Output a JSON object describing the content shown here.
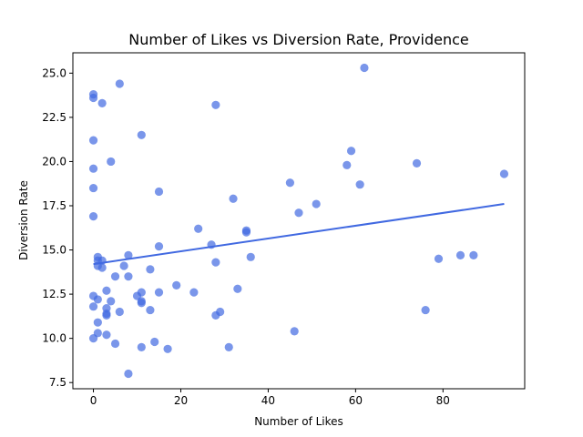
{
  "chart_data": {
    "type": "scatter",
    "title": "Number of Likes vs Diversion Rate, Providence",
    "xlabel": "Number of Likes",
    "ylabel": "Diversion Rate",
    "xlim": [
      -4.7,
      98.7
    ],
    "ylim": [
      7.15,
      26.15
    ],
    "grid": false,
    "xticks": [
      0,
      20,
      40,
      60,
      80
    ],
    "xtick_labels": [
      "0",
      "20",
      "40",
      "60",
      "80"
    ],
    "yticks": [
      7.5,
      10.0,
      12.5,
      15.0,
      17.5,
      20.0,
      22.5,
      25.0
    ],
    "ytick_labels": [
      "7.5",
      "10.0",
      "12.5",
      "15.0",
      "17.5",
      "20.0",
      "22.5",
      "25.0"
    ],
    "point_color": "#4169e1",
    "trendline": {
      "x": [
        0,
        94
      ],
      "y": [
        14.2,
        17.6
      ],
      "color": "#4169e1"
    },
    "points": [
      {
        "x": 0,
        "y": 23.8
      },
      {
        "x": 0,
        "y": 23.6
      },
      {
        "x": 2,
        "y": 23.3
      },
      {
        "x": 6,
        "y": 24.4
      },
      {
        "x": 0,
        "y": 21.2
      },
      {
        "x": 0,
        "y": 19.6
      },
      {
        "x": 0,
        "y": 18.5
      },
      {
        "x": 0,
        "y": 16.9
      },
      {
        "x": 4,
        "y": 20.0
      },
      {
        "x": 11,
        "y": 21.5
      },
      {
        "x": 28,
        "y": 23.2
      },
      {
        "x": 62,
        "y": 25.3
      },
      {
        "x": 1,
        "y": 14.6
      },
      {
        "x": 1,
        "y": 14.4
      },
      {
        "x": 1,
        "y": 14.1
      },
      {
        "x": 2,
        "y": 14.4
      },
      {
        "x": 2,
        "y": 14.0
      },
      {
        "x": 7,
        "y": 14.1
      },
      {
        "x": 8,
        "y": 14.7
      },
      {
        "x": 8,
        "y": 13.5
      },
      {
        "x": 5,
        "y": 13.5
      },
      {
        "x": 3,
        "y": 12.7
      },
      {
        "x": 0,
        "y": 12.4
      },
      {
        "x": 1,
        "y": 12.2
      },
      {
        "x": 4,
        "y": 12.1
      },
      {
        "x": 0,
        "y": 11.8
      },
      {
        "x": 3,
        "y": 11.7
      },
      {
        "x": 3,
        "y": 11.4
      },
      {
        "x": 3,
        "y": 11.3
      },
      {
        "x": 6,
        "y": 11.5
      },
      {
        "x": 1,
        "y": 10.9
      },
      {
        "x": 1,
        "y": 10.3
      },
      {
        "x": 3,
        "y": 10.2
      },
      {
        "x": 0,
        "y": 10.0
      },
      {
        "x": 5,
        "y": 9.7
      },
      {
        "x": 8,
        "y": 8.0
      },
      {
        "x": 10,
        "y": 12.4
      },
      {
        "x": 11,
        "y": 12.6
      },
      {
        "x": 11,
        "y": 12.1
      },
      {
        "x": 11,
        "y": 12.0
      },
      {
        "x": 13,
        "y": 13.9
      },
      {
        "x": 13,
        "y": 11.6
      },
      {
        "x": 15,
        "y": 15.2
      },
      {
        "x": 15,
        "y": 12.6
      },
      {
        "x": 15,
        "y": 18.3
      },
      {
        "x": 11,
        "y": 9.5
      },
      {
        "x": 14,
        "y": 9.8
      },
      {
        "x": 17,
        "y": 9.4
      },
      {
        "x": 19,
        "y": 13.0
      },
      {
        "x": 23,
        "y": 12.6
      },
      {
        "x": 24,
        "y": 16.2
      },
      {
        "x": 27,
        "y": 15.3
      },
      {
        "x": 28,
        "y": 14.3
      },
      {
        "x": 28,
        "y": 11.3
      },
      {
        "x": 29,
        "y": 11.5
      },
      {
        "x": 31,
        "y": 9.5
      },
      {
        "x": 32,
        "y": 17.9
      },
      {
        "x": 33,
        "y": 12.8
      },
      {
        "x": 35,
        "y": 16.1
      },
      {
        "x": 35,
        "y": 16.0
      },
      {
        "x": 36,
        "y": 14.6
      },
      {
        "x": 45,
        "y": 18.8
      },
      {
        "x": 46,
        "y": 10.4
      },
      {
        "x": 47,
        "y": 17.1
      },
      {
        "x": 51,
        "y": 17.6
      },
      {
        "x": 58,
        "y": 19.8
      },
      {
        "x": 59,
        "y": 20.6
      },
      {
        "x": 61,
        "y": 18.7
      },
      {
        "x": 74,
        "y": 19.9
      },
      {
        "x": 76,
        "y": 11.6
      },
      {
        "x": 79,
        "y": 14.5
      },
      {
        "x": 84,
        "y": 14.7
      },
      {
        "x": 87,
        "y": 14.7
      },
      {
        "x": 94,
        "y": 19.3
      }
    ]
  }
}
